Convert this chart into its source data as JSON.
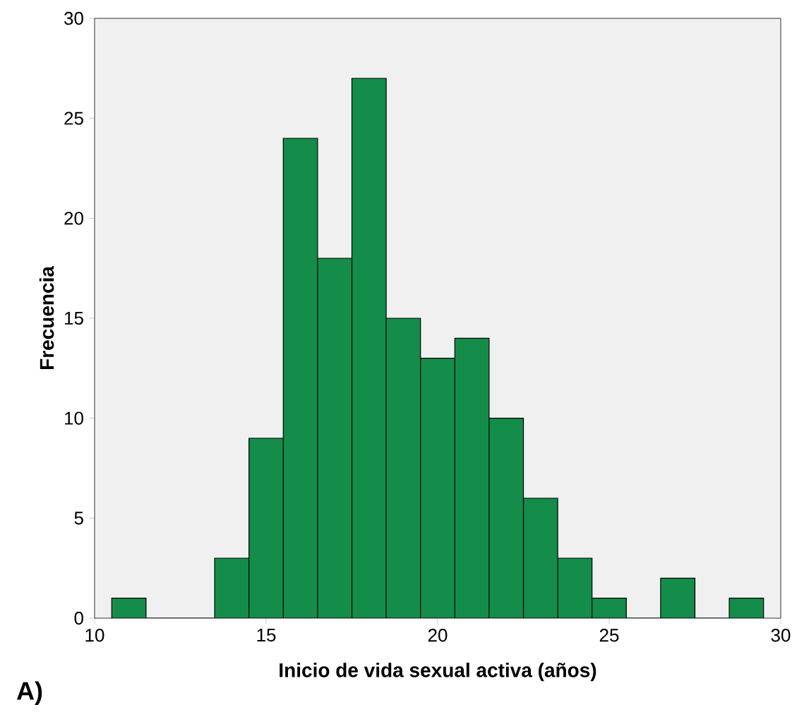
{
  "chart_data": {
    "type": "histogram",
    "xlabel": "Inicio de vida sexual activa (años)",
    "ylabel": "Frecuencia",
    "annotations": [
      "A)"
    ],
    "bins": [
      10.5,
      11.5,
      12.5,
      13.5,
      14.5,
      15.5,
      16.5,
      17.5,
      18.5,
      19.5,
      20.5,
      21.5,
      22.5,
      23.5,
      24.5,
      25.5,
      26.5,
      27.5,
      28.5,
      29.5
    ],
    "values": [
      1,
      0,
      0,
      3,
      9,
      24,
      18,
      27,
      15,
      13,
      14,
      10,
      6,
      3,
      1,
      0,
      2,
      0,
      1
    ],
    "color": "#148c4a",
    "xlim": [
      10,
      30
    ],
    "xticks": [
      10,
      15,
      20,
      25,
      30
    ],
    "ylim": [
      0,
      30
    ],
    "yticks": [
      0,
      5,
      10,
      15,
      20,
      25,
      30
    ],
    "grid": false
  }
}
